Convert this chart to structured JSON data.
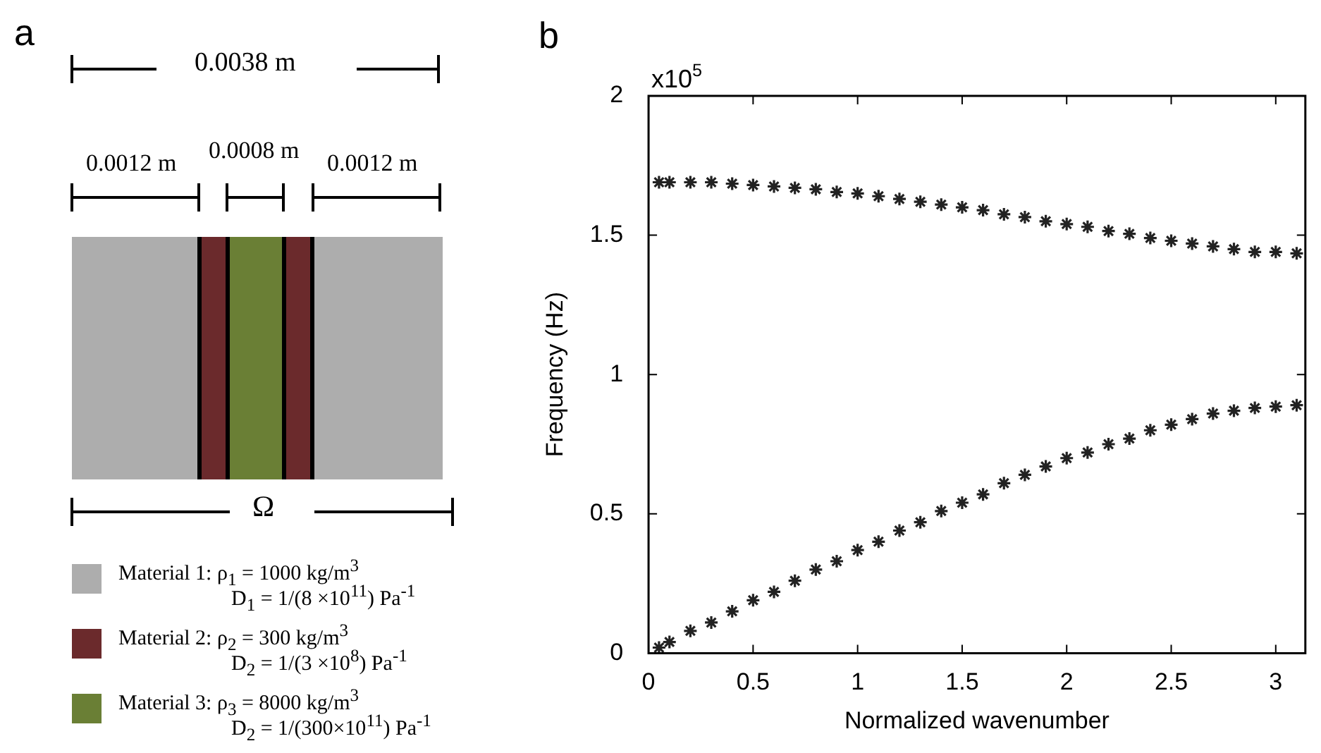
{
  "chart_data": [
    {
      "type": "other",
      "title": "a",
      "annotations": [
        "0.0038 m",
        "0.0012 m",
        "0.0008 m",
        "0.0012 m",
        "Ω",
        "Material 1: ρ$_{1}$ = 1000 kg/m$^{3}$",
        "D$_{1}$ = 1/(8 ×10$^{11}$) Pa$^{-1}$",
        "Material 2: ρ$_{2}$ = 300 kg/m$^{3}$",
        "D$_{2}$ = 1/(3 ×10$^{8}$) Pa$^{-1}$",
        "Material 3: ρ$_{3}$ = 8000 kg/m$^{3}$",
        "D$_{2}$ = 1/(300×10$^{11}$) Pa$^{-1}$"
      ]
    },
    {
      "type": "scatter",
      "title": "b",
      "xlabel": "Normalized wavenumber",
      "ylabel": "Frequency (Hz)",
      "annotations": [
        "x10$^{5}$"
      ],
      "marker": "cross",
      "grid": false,
      "legend": false,
      "x": [
        0.05,
        0.1,
        0.2,
        0.3,
        0.4,
        0.5,
        0.6,
        0.7,
        0.8,
        0.9,
        1.0,
        1.1,
        1.2,
        1.3,
        1.4,
        1.5,
        1.6,
        1.7,
        1.8,
        1.9,
        2.0,
        2.1,
        2.2,
        2.3,
        2.4,
        2.5,
        2.6,
        2.7,
        2.8,
        2.9,
        3.0,
        3.1
      ],
      "series": [
        {
          "color": "#222222",
          "values": [
            1.69,
            1.69,
            1.69,
            1.69,
            1.685,
            1.68,
            1.675,
            1.67,
            1.665,
            1.655,
            1.65,
            1.64,
            1.63,
            1.62,
            1.61,
            1.6,
            1.59,
            1.575,
            1.565,
            1.55,
            1.54,
            1.53,
            1.515,
            1.505,
            1.49,
            1.48,
            1.47,
            1.46,
            1.45,
            1.44,
            1.44,
            1.435
          ]
        },
        {
          "color": "#222222",
          "values": [
            0.02,
            0.04,
            0.08,
            0.11,
            0.15,
            0.19,
            0.22,
            0.26,
            0.3,
            0.33,
            0.37,
            0.4,
            0.44,
            0.47,
            0.51,
            0.54,
            0.57,
            0.61,
            0.64,
            0.67,
            0.7,
            0.72,
            0.75,
            0.77,
            0.8,
            0.82,
            0.84,
            0.86,
            0.87,
            0.88,
            0.885,
            0.89
          ]
        }
      ],
      "xlim": [
        0,
        3.1416
      ],
      "xticks": [
        0,
        0.5,
        1,
        1.5,
        2,
        2.5,
        3
      ],
      "ylim": [
        0,
        2
      ],
      "yticks": [
        0,
        0.5,
        1,
        1.5,
        2
      ]
    }
  ]
}
